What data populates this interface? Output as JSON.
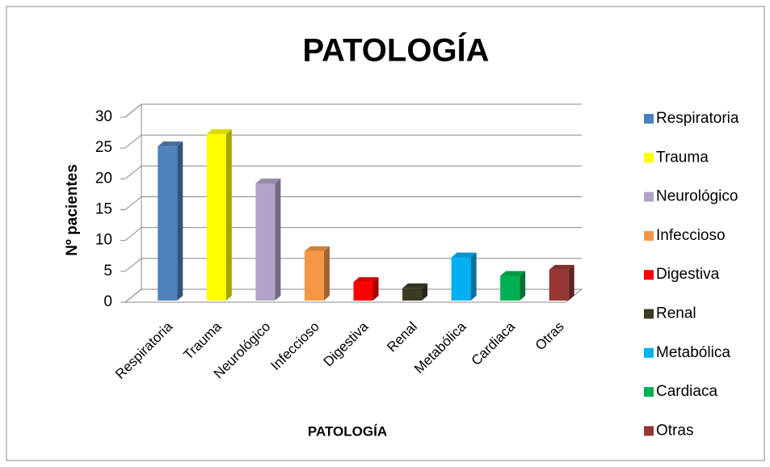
{
  "chart_data": {
    "type": "bar3d",
    "title": "PATOLOGÍA",
    "x_label": "PATOLOGÍA",
    "y_label": "Nº pacientes",
    "categories": [
      "Respiratoria",
      "Trauma",
      "Neurológico",
      "Infeccioso",
      "Digestiva",
      "Renal",
      "Metabólica",
      "Cardiaca",
      "Otras"
    ],
    "values": [
      25,
      27,
      19,
      8,
      3,
      2,
      7,
      4,
      5
    ],
    "colors": [
      "#4f81bd",
      "#ffff00",
      "#b3a2c7",
      "#f79646",
      "#ff0000",
      "#3d3a24",
      "#00b0f0",
      "#00b050",
      "#953735"
    ],
    "ylim": [
      0,
      30
    ],
    "yticks": [
      0,
      5,
      10,
      15,
      20,
      25,
      30
    ],
    "grid": true,
    "legend": "right"
  }
}
